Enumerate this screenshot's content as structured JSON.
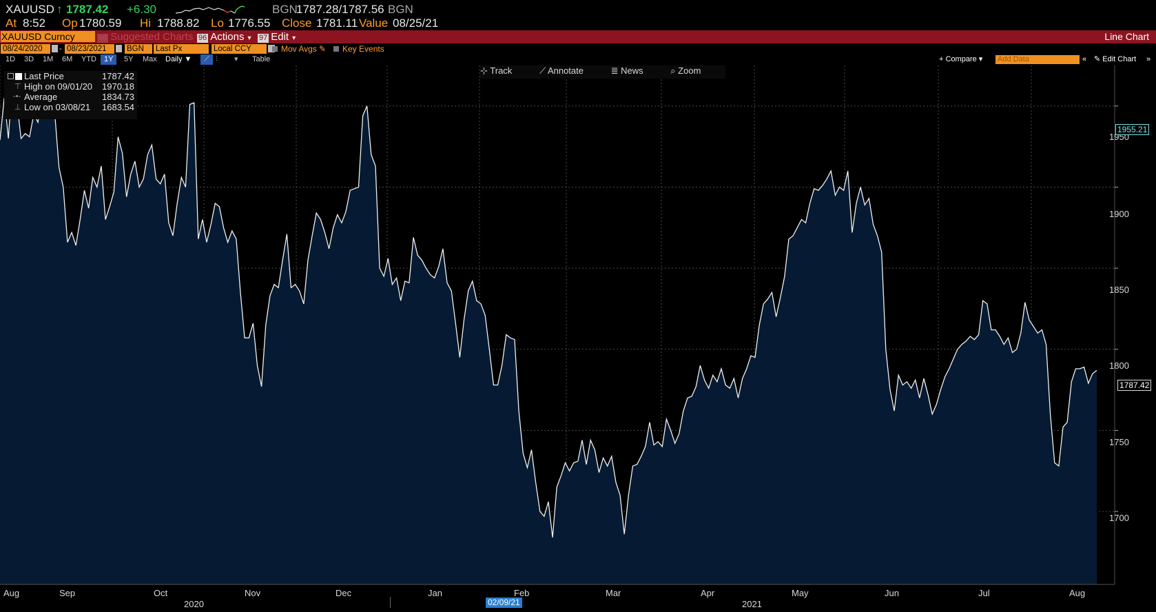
{
  "quote": {
    "symbol": "XAUUSD",
    "arrow": "↑",
    "last": "1787.42",
    "change": "+6.30",
    "source": "BGN",
    "bid_ask": "1787.28/1787.56",
    "source2": "BGN",
    "at_label": "At",
    "time": "8:52",
    "op_label": "Op",
    "open": "1780.59",
    "hi_label": "Hi",
    "high": "1788.82",
    "lo_label": "Lo",
    "low": "1776.55",
    "close_label": "Close",
    "close": "1781.11",
    "value_label": "Value",
    "value_date": "08/25/21"
  },
  "command_bar": {
    "ticker": "XAUUSD Curncy",
    "suggested_num": "96",
    "suggested": "Suggested Charts",
    "actions_num": "96",
    "actions": "Actions",
    "edit_num": "97",
    "edit": "Edit",
    "title": "Line Chart"
  },
  "toolbar": {
    "start_date": "08/24/2020",
    "end_date": "08/23/2021",
    "source": "BGN",
    "field": "Last Px",
    "currency": "Local CCY",
    "mov_avgs": "Mov Avgs",
    "key_events": "Key Events"
  },
  "range": {
    "buttons": [
      "1D",
      "3D",
      "1M",
      "6M",
      "YTD",
      "1Y",
      "5Y",
      "Max"
    ],
    "selected": "1Y",
    "period": "Daily ▼",
    "table": "Table",
    "compare": "+ Compare ▾",
    "add_data": "Add Data",
    "edit_chart": "Edit Chart"
  },
  "float_tools": {
    "track": "Track",
    "annotate": "Annotate",
    "news": "News",
    "zoom": "Zoom"
  },
  "legend": {
    "last_label": "Last Price",
    "last_value": "1787.42",
    "high_label": "High on 09/01/20",
    "high_value": "1970.18",
    "avg_label": "Average",
    "avg_value": "1834.73",
    "low_label": "Low on 03/08/21",
    "low_value": "1683.54"
  },
  "cursor_date": "02/09/21",
  "chart_data": {
    "type": "area",
    "series": [
      {
        "name": "Last Price",
        "values": [
          1929,
          1955,
          1930,
          1970,
          1952,
          1930,
          1933,
          1931,
          1945,
          1940,
          1958,
          1952,
          1955,
          1945,
          1912,
          1900,
          1866,
          1872,
          1864,
          1880,
          1898,
          1887,
          1906,
          1900,
          1913,
          1880,
          1888,
          1897,
          1931,
          1921,
          1894,
          1908,
          1916,
          1900,
          1905,
          1920,
          1926,
          1905,
          1902,
          1908,
          1878,
          1870,
          1890,
          1906,
          1900,
          1951,
          1952,
          1868,
          1880,
          1866,
          1877,
          1890,
          1888,
          1875,
          1866,
          1873,
          1868,
          1835,
          1807,
          1807,
          1816,
          1790,
          1777,
          1815,
          1833,
          1840,
          1838,
          1855,
          1871,
          1838,
          1840,
          1836,
          1828,
          1855,
          1870,
          1884,
          1880,
          1872,
          1862,
          1875,
          1883,
          1878,
          1885,
          1898,
          1899,
          1900,
          1944,
          1950,
          1920,
          1913,
          1850,
          1845,
          1856,
          1840,
          1844,
          1830,
          1842,
          1841,
          1869,
          1858,
          1855,
          1850,
          1846,
          1844,
          1851,
          1862,
          1841,
          1836,
          1816,
          1795,
          1818,
          1836,
          1842,
          1830,
          1828,
          1821,
          1800,
          1778,
          1778,
          1790,
          1809,
          1807,
          1806,
          1762,
          1736,
          1727,
          1738,
          1718,
          1700,
          1697,
          1706,
          1684,
          1715,
          1722,
          1730,
          1725,
          1730,
          1731,
          1744,
          1729,
          1744,
          1738,
          1724,
          1733,
          1728,
          1734,
          1718,
          1710,
          1686,
          1710,
          1728,
          1729,
          1734,
          1740,
          1755,
          1741,
          1743,
          1740,
          1757,
          1750,
          1742,
          1748,
          1762,
          1770,
          1771,
          1777,
          1790,
          1781,
          1776,
          1784,
          1780,
          1788,
          1778,
          1776,
          1782,
          1770,
          1782,
          1788,
          1796,
          1795,
          1815,
          1828,
          1831,
          1835,
          1820,
          1832,
          1845,
          1868,
          1870,
          1875,
          1880,
          1878,
          1890,
          1899,
          1898,
          1901,
          1905,
          1910,
          1895,
          1900,
          1898,
          1910,
          1872,
          1890,
          1900,
          1889,
          1893,
          1877,
          1870,
          1860,
          1800,
          1775,
          1762,
          1784,
          1778,
          1780,
          1776,
          1781,
          1770,
          1782,
          1772,
          1760,
          1766,
          1775,
          1783,
          1788,
          1794,
          1800,
          1803,
          1805,
          1808,
          1806,
          1809,
          1830,
          1828,
          1812,
          1812,
          1808,
          1803,
          1807,
          1798,
          1800,
          1810,
          1829,
          1818,
          1814,
          1810,
          1812,
          1803,
          1760,
          1730,
          1728,
          1752,
          1755,
          1780,
          1788,
          1788,
          1789,
          1779,
          1785,
          1787
        ]
      }
    ],
    "ylim": [
      1655,
      1975
    ],
    "yticks": [
      1700,
      1750,
      1800,
      1850,
      1900,
      1950
    ],
    "x_month_labels": [
      "Aug",
      "Sep",
      "Oct",
      "Nov",
      "Dec",
      "Jan",
      "Feb",
      "Mar",
      "Apr",
      "May",
      "Jun",
      "Jul",
      "Aug"
    ],
    "x_year_labels": [
      "2020",
      "2021"
    ],
    "value_tags": [
      "1955.21",
      "1787.42"
    ],
    "grid": true,
    "legend_position": "top-left"
  }
}
